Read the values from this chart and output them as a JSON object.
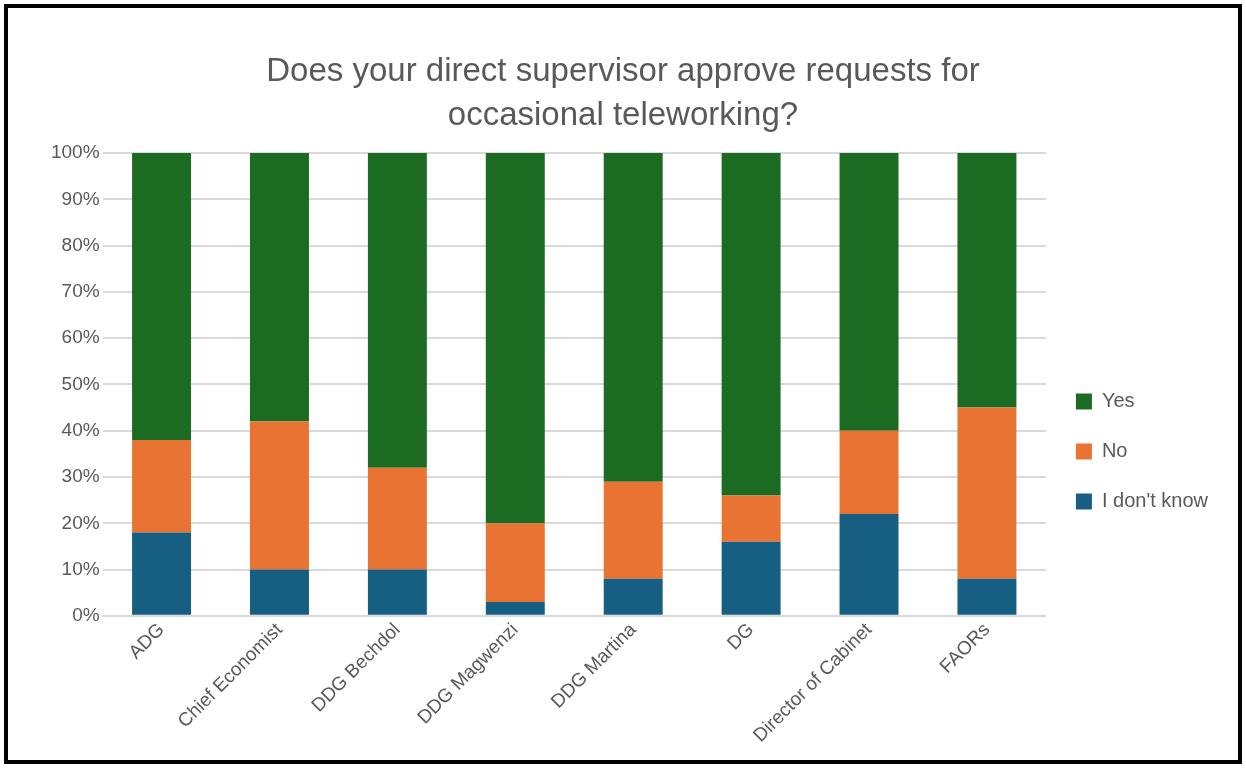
{
  "chart_data": {
    "type": "bar",
    "stacked": true,
    "title": "Does your direct supervisor approve requests for occasional teleworking?",
    "categories": [
      "ADG",
      "Chief Economist",
      "DDG Bechdol",
      "DDG Magwenzi",
      "DDG Martina",
      "DG",
      "Director of Cabinet",
      "FAORs"
    ],
    "series": [
      {
        "name": "I don't know",
        "color": "#165f82",
        "values": [
          18,
          10,
          10,
          3,
          8,
          16,
          22,
          8
        ]
      },
      {
        "name": "No",
        "color": "#e87332",
        "values": [
          20,
          32,
          22,
          17,
          21,
          10,
          18,
          37
        ]
      },
      {
        "name": "Yes",
        "color": "#1b6b23",
        "values": [
          62,
          58,
          68,
          80,
          71,
          74,
          60,
          55
        ]
      }
    ],
    "ylim": [
      0,
      100
    ],
    "yticks": [
      {
        "value": 0,
        "label": "0%"
      },
      {
        "value": 10,
        "label": "10%"
      },
      {
        "value": 20,
        "label": "20%"
      },
      {
        "value": 30,
        "label": "30%"
      },
      {
        "value": 40,
        "label": "40%"
      },
      {
        "value": 50,
        "label": "50%"
      },
      {
        "value": 60,
        "label": "60%"
      },
      {
        "value": 70,
        "label": "70%"
      },
      {
        "value": 80,
        "label": "80%"
      },
      {
        "value": 90,
        "label": "90%"
      },
      {
        "value": 100,
        "label": "100%"
      }
    ],
    "grid": "y",
    "legend": "right"
  }
}
